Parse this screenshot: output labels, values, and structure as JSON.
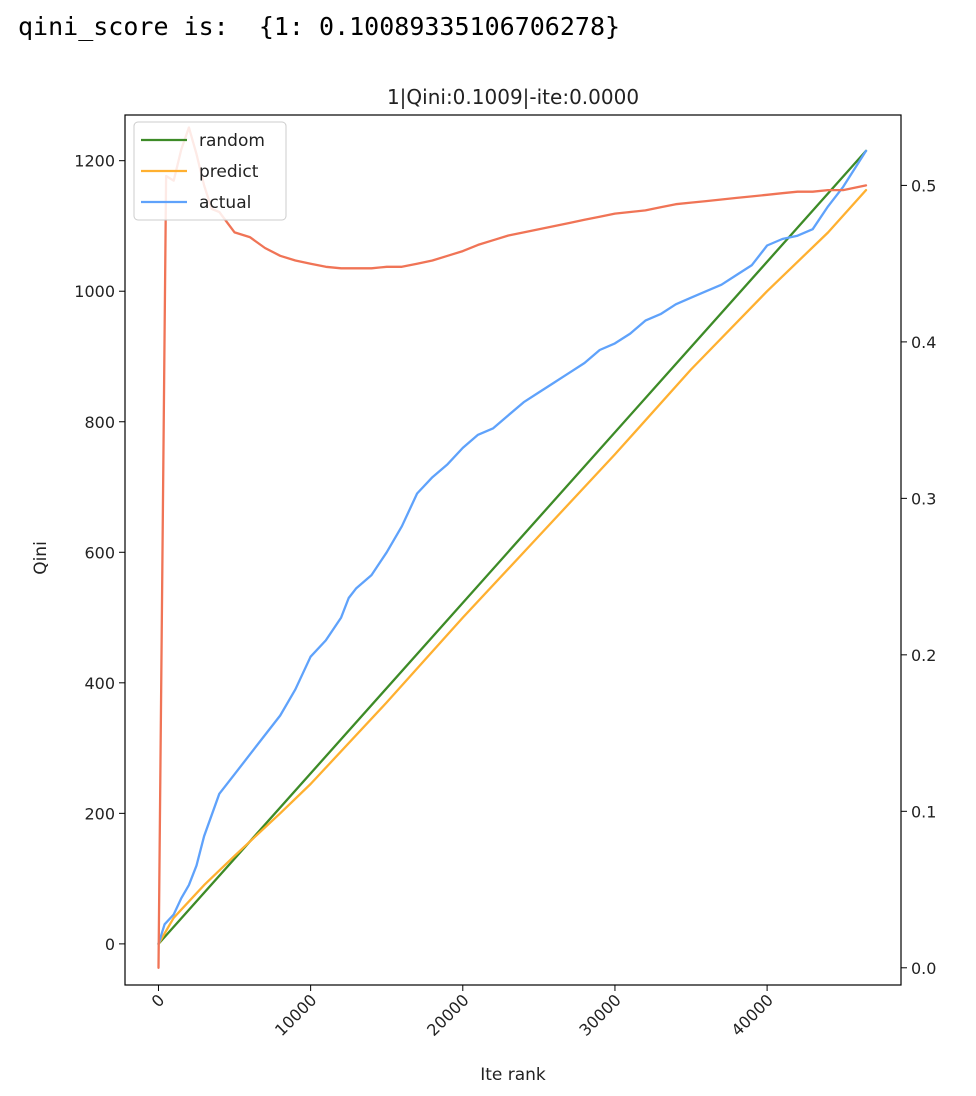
{
  "console": {
    "output": "qini_score is:  {1: 0.10089335106706278}"
  },
  "chart_data": {
    "type": "line",
    "title": "1|Qini:0.1009|-ite:0.0000",
    "xlabel": "Ite rank",
    "ylabel": "Qini",
    "xlim": [
      -2200,
      48800
    ],
    "ylim": [
      -63,
      1270
    ],
    "y2lim": [
      -0.011,
      0.545
    ],
    "xticks": [
      0,
      10000,
      20000,
      30000,
      40000
    ],
    "xtick_labels": [
      "0",
      "10000",
      "20000",
      "30000",
      "40000"
    ],
    "yticks": [
      0,
      200,
      400,
      600,
      800,
      1000,
      1200
    ],
    "ytick_labels": [
      "0",
      "200",
      "400",
      "600",
      "800",
      "1000",
      "1200"
    ],
    "y2ticks": [
      0.0,
      0.1,
      0.2,
      0.3,
      0.4,
      0.5
    ],
    "y2tick_labels": [
      "0.0",
      "0.1",
      "0.2",
      "0.3",
      "0.4",
      "0.5"
    ],
    "grid": false,
    "legend_position": "top-left",
    "series": [
      {
        "name": "random",
        "color": "#3d8b27",
        "axis": "left",
        "x": [
          0,
          46500
        ],
        "y": [
          0,
          1215
        ]
      },
      {
        "name": "predict",
        "color": "#ffb030",
        "axis": "left",
        "x": [
          0,
          1000,
          3000,
          5000,
          8000,
          10000,
          15000,
          20000,
          25000,
          30000,
          35000,
          40000,
          44000,
          46500
        ],
        "y": [
          0,
          40,
          90,
          135,
          200,
          245,
          370,
          500,
          625,
          750,
          880,
          1000,
          1090,
          1155
        ]
      },
      {
        "name": "actual",
        "color": "#5fa2fb",
        "axis": "left",
        "x": [
          0,
          400,
          1000,
          1500,
          2000,
          2500,
          3000,
          4000,
          5000,
          6000,
          7000,
          8000,
          8500,
          9000,
          10000,
          11000,
          12000,
          12500,
          13000,
          14000,
          15000,
          16000,
          17000,
          18000,
          19000,
          20000,
          21000,
          22000,
          23000,
          24000,
          25000,
          26000,
          27000,
          28000,
          29000,
          30000,
          31000,
          32000,
          33000,
          34000,
          35000,
          36000,
          37000,
          38000,
          39000,
          40000,
          41000,
          42000,
          43000,
          44000,
          45000,
          46500
        ],
        "y": [
          0,
          30,
          45,
          70,
          90,
          120,
          165,
          230,
          260,
          290,
          320,
          350,
          370,
          390,
          440,
          465,
          500,
          530,
          545,
          565,
          600,
          640,
          690,
          715,
          735,
          760,
          780,
          790,
          810,
          830,
          845,
          860,
          875,
          890,
          910,
          920,
          935,
          955,
          965,
          980,
          990,
          1000,
          1010,
          1025,
          1040,
          1070,
          1080,
          1085,
          1095,
          1130,
          1160,
          1215
        ]
      },
      {
        "name": "",
        "color": "#f07456",
        "axis": "right",
        "x": [
          0,
          500,
          1000,
          1500,
          2000,
          2500,
          3000,
          3500,
          4000,
          5000,
          6000,
          7000,
          8000,
          9000,
          10000,
          11000,
          12000,
          13000,
          14000,
          15000,
          16000,
          17000,
          18000,
          19000,
          20000,
          21000,
          22000,
          23000,
          24000,
          25000,
          26000,
          27000,
          28000,
          29000,
          30000,
          31000,
          32000,
          33000,
          34000,
          35000,
          36000,
          37000,
          38000,
          39000,
          40000,
          41000,
          42000,
          43000,
          44000,
          45000,
          46500
        ],
        "y": [
          0.0,
          0.506,
          0.503,
          0.523,
          0.537,
          0.52,
          0.5,
          0.485,
          0.483,
          0.47,
          0.467,
          0.46,
          0.455,
          0.452,
          0.45,
          0.448,
          0.447,
          0.447,
          0.447,
          0.448,
          0.448,
          0.45,
          0.452,
          0.455,
          0.458,
          0.462,
          0.465,
          0.468,
          0.47,
          0.472,
          0.474,
          0.476,
          0.478,
          0.48,
          0.482,
          0.483,
          0.484,
          0.486,
          0.488,
          0.489,
          0.49,
          0.491,
          0.492,
          0.493,
          0.494,
          0.495,
          0.496,
          0.496,
          0.497,
          0.497,
          0.5
        ]
      }
    ]
  }
}
